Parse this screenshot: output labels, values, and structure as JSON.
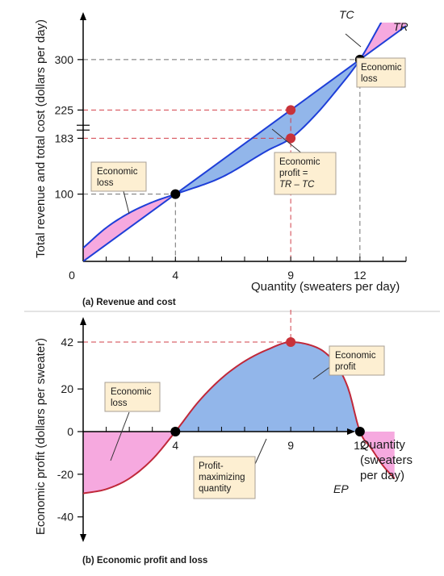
{
  "chart_data": [
    {
      "id": "revenue-cost",
      "type": "line",
      "title": "(a) Revenue and cost",
      "xlabel": "Quantity (sweaters per day)",
      "ylabel": "Total revenue and total cost (dollars per day)",
      "xlim": [
        0,
        14
      ],
      "ylim": [
        0,
        355
      ],
      "x_ticks": [
        4,
        9,
        12
      ],
      "x_origin_label": "0",
      "y_ticks": [
        100,
        183,
        225,
        300
      ],
      "series": [
        {
          "name": "TC",
          "color": "#1e3fd8",
          "x": [
            0,
            1,
            2,
            3,
            4,
            6,
            8,
            9,
            10,
            11,
            12,
            13,
            14
          ],
          "y": [
            20,
            50,
            72,
            88,
            100,
            125,
            165,
            183,
            215,
            255,
            300,
            360,
            420
          ]
        },
        {
          "name": "TR",
          "color": "#1e3fd8",
          "x": [
            0,
            14
          ],
          "y": [
            0,
            350
          ]
        }
      ],
      "points": [
        {
          "x": 4,
          "y": 100,
          "color": "#000000"
        },
        {
          "x": 12,
          "y": 300,
          "color": "#000000"
        },
        {
          "x": 9,
          "y": 225,
          "color": "#c8323a"
        },
        {
          "x": 9,
          "y": 183,
          "color": "#c8323a"
        }
      ],
      "annotations": {
        "loss_left": [
          "Economic",
          "loss"
        ],
        "loss_right": [
          "Economic",
          "loss"
        ],
        "profit": [
          "Economic",
          "profit =",
          "TR – TC"
        ]
      },
      "colors": {
        "profit_fill": "#92b6ea",
        "loss_fill": "#f6a9df",
        "curve": "#1e3fd8",
        "guide_red": "#d2404a",
        "guide_gray": "#707070"
      }
    },
    {
      "id": "profit-loss",
      "type": "line",
      "title": "(b) Economic profit and loss",
      "xlabel": "Quantity (sweaters per day)",
      "xlabel_lines": [
        "Quantity",
        "(sweaters",
        "per day)"
      ],
      "ylabel": "Economic profit (dollars per sweater)",
      "xlim": [
        0,
        14
      ],
      "ylim": [
        -48,
        46
      ],
      "x_ticks": [
        4,
        9,
        12
      ],
      "y_ticks": [
        42,
        20,
        0,
        -20,
        -40
      ],
      "series": [
        {
          "name": "EP",
          "color": "#c0283a",
          "x": [
            0,
            1,
            2,
            3,
            4,
            5,
            6,
            7,
            8,
            9,
            10,
            10.5,
            11,
            11.5,
            12,
            12.5,
            13,
            13.5
          ],
          "y": [
            -29,
            -27,
            -22,
            -13,
            0,
            14,
            25,
            33,
            38.5,
            42,
            40,
            37,
            31,
            20,
            0,
            -8,
            -16,
            -22
          ]
        }
      ],
      "points": [
        {
          "x": 4,
          "y": 0,
          "color": "#000000"
        },
        {
          "x": 12,
          "y": 0,
          "color": "#000000"
        },
        {
          "x": 9,
          "y": 42,
          "color": "#c8323a"
        }
      ],
      "annotations": {
        "loss": [
          "Economic",
          "loss"
        ],
        "profit": [
          "Economic",
          "profit"
        ],
        "max": [
          "Profit-",
          "maximizing",
          "quantity"
        ]
      },
      "colors": {
        "profit_fill": "#92b6ea",
        "loss_fill": "#f6a9df",
        "curve": "#c0283a",
        "guide_red": "#d2404a"
      }
    }
  ],
  "note_style": {
    "fill": "#fdefd2",
    "stroke": "#a89f94"
  }
}
